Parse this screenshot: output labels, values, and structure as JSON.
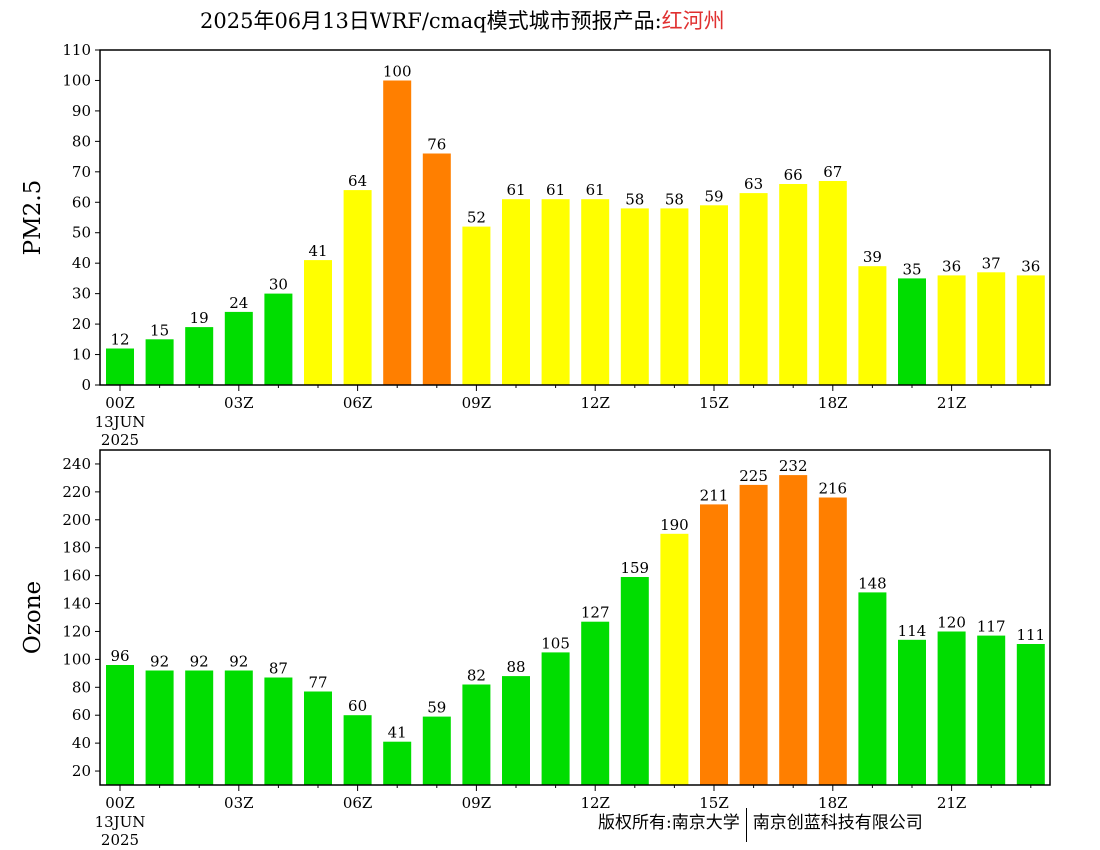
{
  "title": {
    "prefix": "2025年06月13日WRF/cmaq模式城市预报产品:",
    "city": "红河州"
  },
  "copyright": {
    "left": "版权所有:南京大学",
    "right": "南京创蓝科技有限公司"
  },
  "colors": {
    "good": "#00dd00",
    "moderate": "#ffff00",
    "unhealthy_sensitive": "#ff7f00",
    "title_city": "#e03030"
  },
  "chart_data": [
    {
      "type": "bar",
      "ylabel": "PM2.5",
      "ylim": [
        0,
        110
      ],
      "yticks": [
        0,
        10,
        20,
        30,
        40,
        50,
        60,
        70,
        80,
        90,
        100,
        110
      ],
      "xtick_labels": [
        "00Z",
        "03Z",
        "06Z",
        "09Z",
        "12Z",
        "15Z",
        "18Z",
        "21Z"
      ],
      "xtick_positions": [
        0,
        3,
        6,
        9,
        12,
        15,
        18,
        21
      ],
      "date_label": [
        "13JUN",
        "2025"
      ],
      "hours": [
        0,
        1,
        2,
        3,
        4,
        5,
        6,
        7,
        8,
        9,
        10,
        11,
        12,
        13,
        14,
        15,
        16,
        17,
        18,
        19,
        20,
        21,
        22,
        23
      ],
      "values": [
        12,
        15,
        19,
        24,
        30,
        41,
        64,
        100,
        76,
        52,
        61,
        61,
        61,
        58,
        58,
        59,
        63,
        66,
        67,
        39,
        35,
        36,
        37,
        36
      ],
      "bar_colors": [
        "good",
        "good",
        "good",
        "good",
        "good",
        "moderate",
        "moderate",
        "unhealthy_sensitive",
        "unhealthy_sensitive",
        "moderate",
        "moderate",
        "moderate",
        "moderate",
        "moderate",
        "moderate",
        "moderate",
        "moderate",
        "moderate",
        "moderate",
        "moderate",
        "good",
        "moderate",
        "moderate",
        "moderate"
      ],
      "grid": false,
      "data_labels": true
    },
    {
      "type": "bar",
      "ylabel": "Ozone",
      "ylim": [
        10,
        250
      ],
      "yticks": [
        20,
        40,
        60,
        80,
        100,
        120,
        140,
        160,
        180,
        200,
        220,
        240
      ],
      "xtick_labels": [
        "00Z",
        "03Z",
        "06Z",
        "09Z",
        "12Z",
        "15Z",
        "18Z",
        "21Z"
      ],
      "xtick_positions": [
        0,
        3,
        6,
        9,
        12,
        15,
        18,
        21
      ],
      "date_label": [
        "13JUN",
        "2025"
      ],
      "hours": [
        0,
        1,
        2,
        3,
        4,
        5,
        6,
        7,
        8,
        9,
        10,
        11,
        12,
        13,
        14,
        15,
        16,
        17,
        18,
        19,
        20,
        21,
        22,
        23
      ],
      "values": [
        96,
        92,
        92,
        92,
        87,
        77,
        60,
        41,
        59,
        82,
        88,
        105,
        127,
        159,
        190,
        211,
        225,
        232,
        216,
        148,
        114,
        120,
        117,
        111
      ],
      "bar_colors": [
        "good",
        "good",
        "good",
        "good",
        "good",
        "good",
        "good",
        "good",
        "good",
        "good",
        "good",
        "good",
        "good",
        "good",
        "moderate",
        "unhealthy_sensitive",
        "unhealthy_sensitive",
        "unhealthy_sensitive",
        "unhealthy_sensitive",
        "good",
        "good",
        "good",
        "good",
        "good"
      ],
      "grid": false,
      "data_labels": true
    }
  ]
}
